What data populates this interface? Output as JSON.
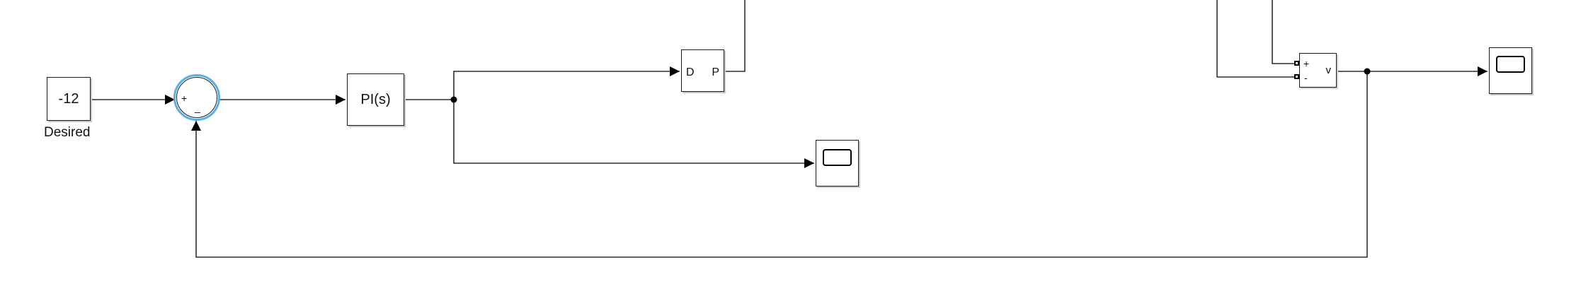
{
  "diagram": {
    "constant_block": {
      "value": "-12",
      "caption": "Desired"
    },
    "sum_block": {
      "plus_sign": "+",
      "minus_sign": "_"
    },
    "pi_block": {
      "label": "PI(s)"
    },
    "dp_block": {
      "left_label": "D",
      "right_label": "P"
    },
    "sensor_block": {
      "plus_port": "+",
      "minus_port": "-",
      "output_label": "v"
    }
  },
  "colors": {
    "wire": "#000000",
    "block_border": "#1a1a1a",
    "block_shadow": "#c8c8c8",
    "selection_ring": "#5aaee6"
  }
}
